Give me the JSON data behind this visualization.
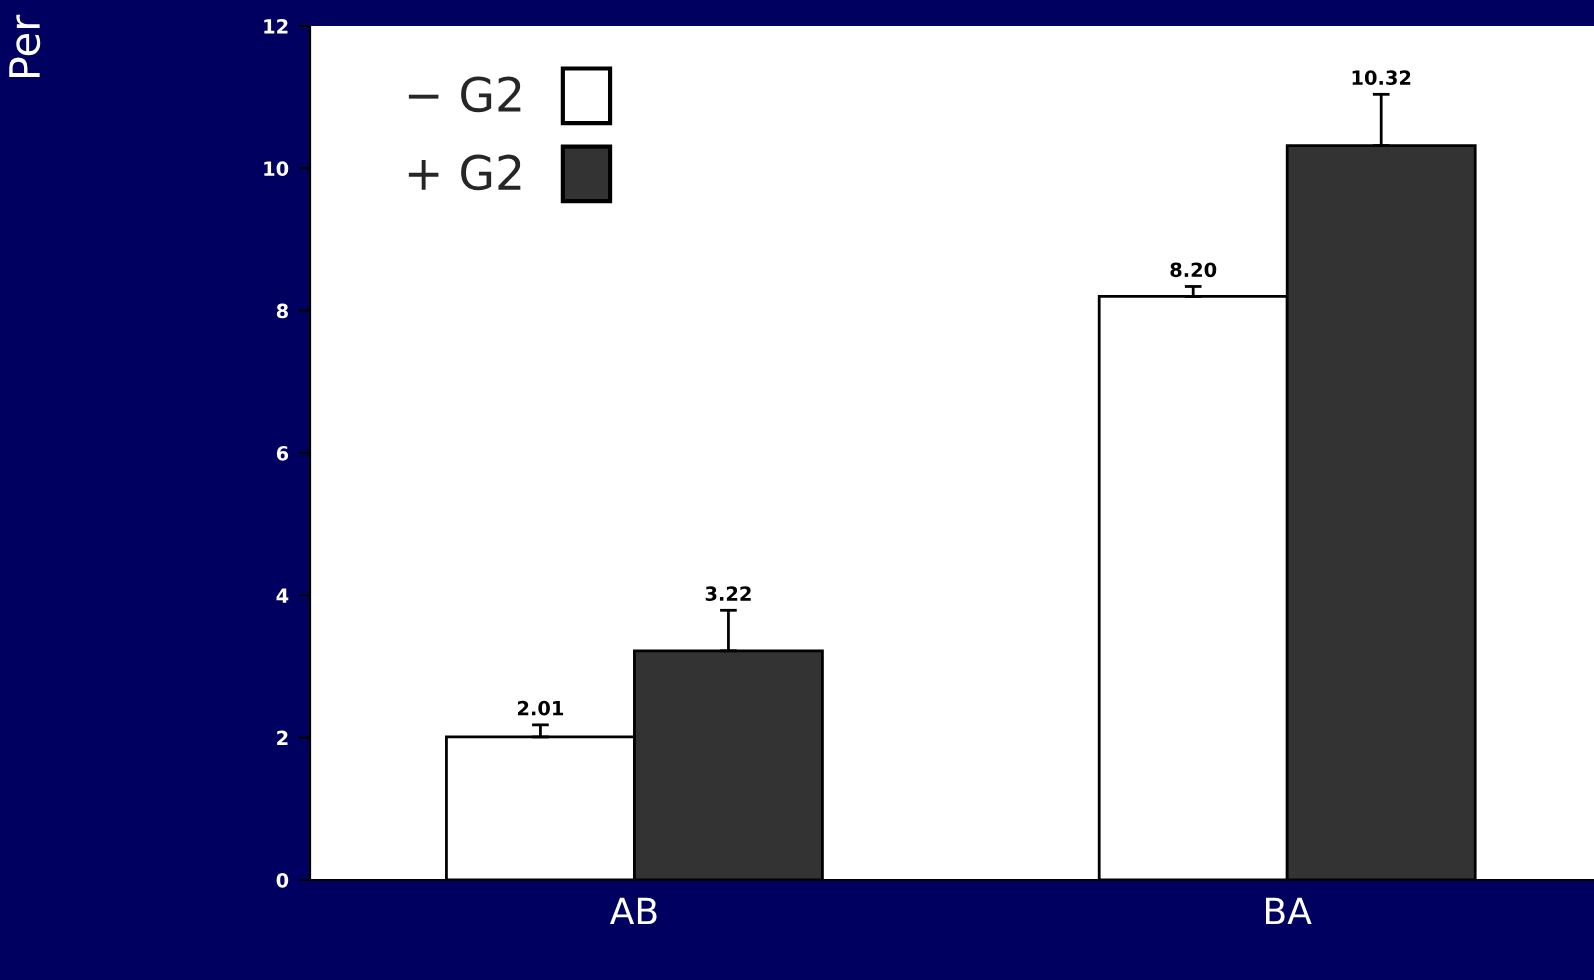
{
  "chart_data": {
    "type": "bar",
    "annotations": [
      "Per"
    ],
    "categories": [
      "AB",
      "BA"
    ],
    "series": [
      {
        "name": "− G2",
        "color": "#ffffff",
        "values": [
          2.01,
          8.2
        ],
        "errors": [
          [
            2.01,
            2.18
          ],
          [
            8.2,
            8.34
          ]
        ],
        "value_labels": [
          "2.01",
          "8.20"
        ]
      },
      {
        "name": "+ G2",
        "color": "#333333",
        "values": [
          3.22,
          10.32
        ],
        "errors": [
          [
            3.22,
            3.79
          ],
          [
            10.32,
            11.04
          ]
        ],
        "value_labels": [
          "3.22",
          "10.32"
        ]
      }
    ],
    "ylim": [
      0,
      12
    ],
    "yticks": [
      0,
      2,
      4,
      6,
      8,
      10,
      12
    ],
    "grid": false,
    "legend": "top left"
  }
}
